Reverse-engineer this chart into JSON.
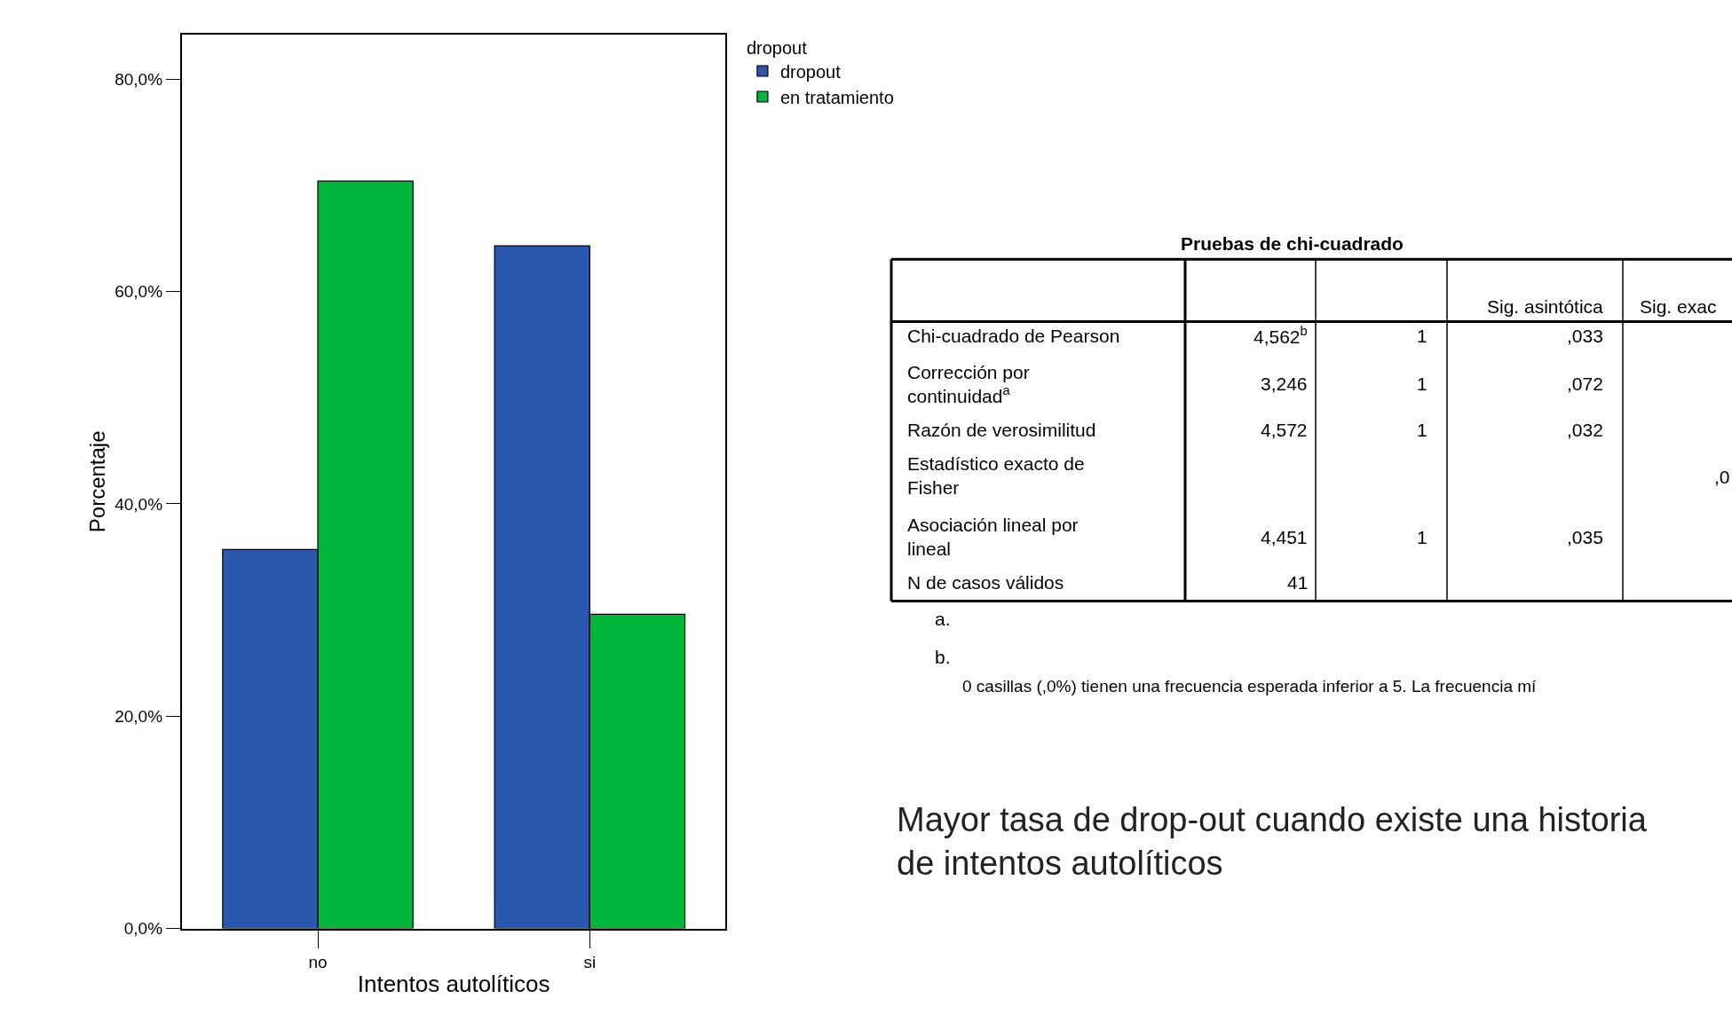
{
  "chart_data": [
    {
      "type": "bar",
      "xlabel": "Intentos autolíticos",
      "ylabel": "Porcentaje",
      "legend_title": "dropout",
      "legend": "top right",
      "grid": false,
      "categories": [
        "no",
        "si"
      ],
      "series": [
        {
          "name": "dropout",
          "color": "#2b57ae",
          "values": [
            35.7,
            64.3
          ]
        },
        {
          "name": "en tratamiento",
          "color": "#00b73a",
          "values": [
            70.4,
            29.6
          ]
        }
      ],
      "ylim": [
        0,
        84.2
      ],
      "yticks": [
        {
          "value": 0,
          "label": "0,0%"
        },
        {
          "value": 20,
          "label": "20,0%"
        },
        {
          "value": 40,
          "label": "40,0%"
        },
        {
          "value": 60,
          "label": "60,0%"
        },
        {
          "value": 80,
          "label": "80,0%"
        }
      ]
    },
    {
      "type": "other",
      "title": "Pruebas de chi-cuadrado",
      "annotations": [
        "Sig. asintótica",
        "Sig. exac",
        "Chi-cuadrado de Pearson",
        "4,562$^{b}$",
        "1",
        ",033",
        "Corrección por\ncontinuidad$^{a}$",
        "3,246",
        "1",
        ",072",
        "Razón de verosimilitud",
        "4,572",
        "1",
        ",032",
        "Estadístico exacto de\nFisher",
        ",0",
        "Asociación lineal por\nlineal",
        "4,451",
        "1",
        ",035",
        "N de casos válidos",
        "41",
        "a.",
        "b.",
        "0 casillas (,0%) tienen una frecuencia esperada inferior a 5. La frecuencia mí",
        "Mayor tasa de drop-out cuando existe una historia\nde intentos autolíticos"
      ]
    }
  ]
}
